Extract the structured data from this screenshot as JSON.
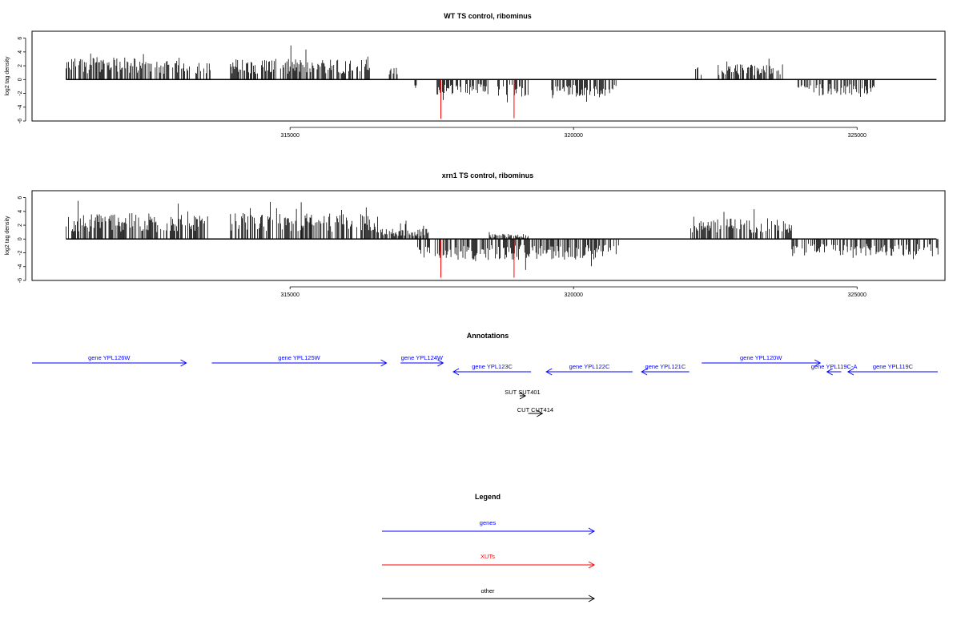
{
  "colors": {
    "gene": "#0000ff",
    "xut": "#ff0000",
    "other": "#000000",
    "signal": "#000000",
    "highlight": "#ff0000"
  },
  "chart_data": [
    {
      "type": "bar",
      "title": "WT TS control, ribominus",
      "ylabel": "log2 tag density",
      "xlim": [
        310450,
        326550
      ],
      "ylim": [
        -6,
        7
      ],
      "yticks": [
        -6,
        -4,
        -2,
        0,
        2,
        4,
        6
      ],
      "xticks": [
        315000,
        320000,
        325000
      ],
      "xtick_labels": [
        "315000",
        "320000",
        "325000"
      ],
      "plus_regions": [
        {
          "from": 311050,
          "to": 312400,
          "level": 2.6
        },
        {
          "from": 312400,
          "to": 313600,
          "level": 2.2
        },
        {
          "from": 313950,
          "to": 316400,
          "level": 2.4
        },
        {
          "from": 316750,
          "to": 316900,
          "level": 1.4
        },
        {
          "from": 322150,
          "to": 322250,
          "level": 1.5
        },
        {
          "from": 322550,
          "to": 323700,
          "level": 1.8
        }
      ],
      "minus_regions": [
        {
          "from": 317200,
          "to": 317250,
          "level": -2.0
        },
        {
          "from": 317550,
          "to": 318500,
          "level": -1.8
        },
        {
          "from": 318650,
          "to": 319200,
          "level": -2.0
        },
        {
          "from": 319600,
          "to": 320750,
          "level": -2.2
        },
        {
          "from": 323900,
          "to": 325300,
          "level": -1.8
        }
      ],
      "red_bars": [
        {
          "x": 317660,
          "y": -5.7
        },
        {
          "x": 318950,
          "y": -5.6
        }
      ]
    },
    {
      "type": "bar",
      "title": "xrn1 TS control, ribominus",
      "ylabel": "log2 tag density",
      "xlim": [
        310450,
        326550
      ],
      "ylim": [
        -6,
        7
      ],
      "yticks": [
        -6,
        -4,
        -2,
        0,
        2,
        4,
        6
      ],
      "xticks": [
        315000,
        320000,
        325000
      ],
      "xtick_labels": [
        "315000",
        "320000",
        "325000"
      ],
      "plus_regions": [
        {
          "from": 311050,
          "to": 312300,
          "level": 3.0
        },
        {
          "from": 312300,
          "to": 313600,
          "level": 2.8
        },
        {
          "from": 313950,
          "to": 316500,
          "level": 3.0
        },
        {
          "from": 316500,
          "to": 317450,
          "level": 1.2
        },
        {
          "from": 318500,
          "to": 319200,
          "level": 0.6
        },
        {
          "from": 322050,
          "to": 323850,
          "level": 2.4
        }
      ],
      "minus_regions": [
        {
          "from": 317250,
          "to": 320800,
          "level": -2.4
        },
        {
          "from": 323850,
          "to": 326450,
          "level": -2.0
        }
      ],
      "red_bars": [
        {
          "x": 317660,
          "y": -5.6
        },
        {
          "x": 318950,
          "y": -5.6
        }
      ]
    }
  ],
  "annotations": {
    "title": "Annotations",
    "features": [
      {
        "label": "gene YPL126W",
        "from": 310450,
        "to": 313170,
        "strand": "+",
        "kind": "gene"
      },
      {
        "label": "gene YPL125W",
        "from": 313620,
        "to": 316700,
        "strand": "+",
        "kind": "gene"
      },
      {
        "label": "gene YPL124W",
        "from": 316950,
        "to": 317700,
        "strand": "+",
        "kind": "gene"
      },
      {
        "label": "gene YPL123C",
        "from": 317880,
        "to": 319250,
        "strand": "-",
        "kind": "gene"
      },
      {
        "label": "gene YPL122C",
        "from": 319520,
        "to": 321040,
        "strand": "-",
        "kind": "gene"
      },
      {
        "label": "gene YPL121C",
        "from": 321200,
        "to": 322040,
        "strand": "-",
        "kind": "gene"
      },
      {
        "label": "gene YPL120W",
        "from": 322260,
        "to": 324350,
        "strand": "+",
        "kind": "gene"
      },
      {
        "label": "gene YPL119C-A",
        "from": 324470,
        "to": 324720,
        "strand": "-",
        "kind": "gene"
      },
      {
        "label": "gene YPL119C",
        "from": 324840,
        "to": 326550,
        "strand": "-",
        "kind": "gene"
      },
      {
        "label": "SUT SUT401",
        "from": 319050,
        "to": 319150,
        "strand": "+",
        "kind": "other"
      },
      {
        "label": "CUT CUT414",
        "from": 319200,
        "to": 319450,
        "strand": "+",
        "kind": "other"
      }
    ]
  },
  "legend": {
    "title": "Legend",
    "items": [
      {
        "label": "genes",
        "kind": "gene"
      },
      {
        "label": "XUTs",
        "kind": "xut"
      },
      {
        "label": "other",
        "kind": "other"
      }
    ]
  }
}
